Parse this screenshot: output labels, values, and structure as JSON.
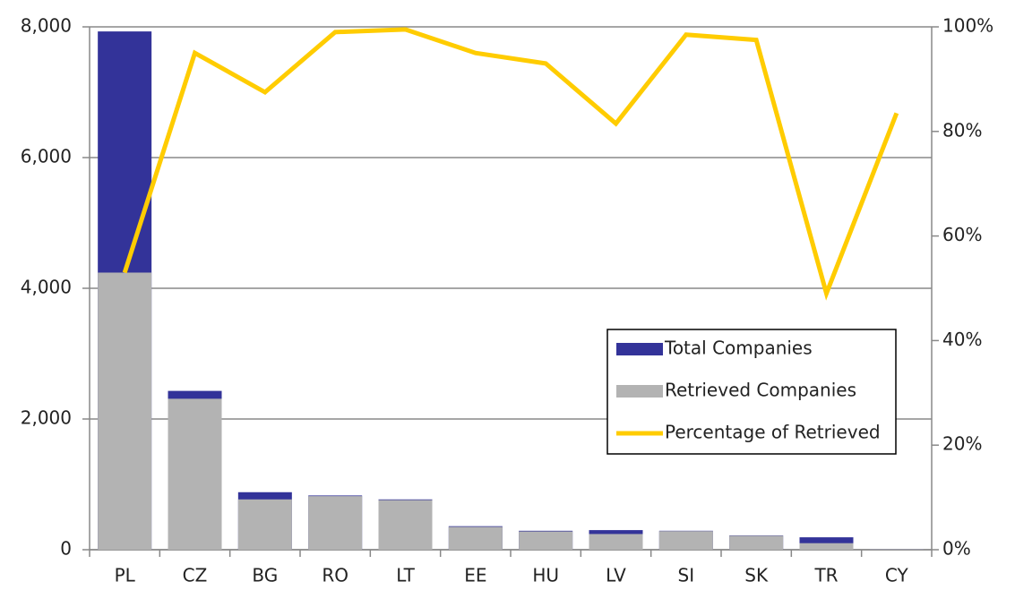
{
  "chart_data": {
    "type": "bar",
    "categories": [
      "PL",
      "CZ",
      "BG",
      "RO",
      "LT",
      "EE",
      "HU",
      "LV",
      "SI",
      "SK",
      "TR",
      "CY"
    ],
    "series": [
      {
        "name": "Total Companies",
        "type": "bar",
        "color": "#333399",
        "values": [
          7930,
          2430,
          880,
          830,
          770,
          360,
          290,
          300,
          290,
          220,
          190,
          6
        ]
      },
      {
        "name": "Retrieved Companies",
        "type": "bar",
        "color": "#b3b3b3",
        "values": [
          4240,
          2310,
          770,
          820,
          760,
          350,
          280,
          240,
          285,
          215,
          100,
          5
        ]
      },
      {
        "name": "Percentage of Retrieved",
        "type": "line",
        "axis": "y2",
        "color": "#ffcc00",
        "values": [
          53,
          95,
          87.5,
          99,
          99.5,
          95,
          93,
          81.5,
          98.5,
          97.5,
          49,
          83.5
        ]
      }
    ],
    "ylim": [
      0,
      8000
    ],
    "yticks": [
      0,
      {
        "value": 2000,
        "label": "2,000"
      },
      {
        "value": 4000,
        "label": "4,000"
      },
      {
        "value": 6000,
        "label": "6,000"
      },
      {
        "value": 8000,
        "label": "8,000"
      }
    ],
    "y2lim": [
      0,
      100
    ],
    "y2ticks": [
      {
        "value": 0,
        "label": "0%"
      },
      {
        "value": 20,
        "label": "20%"
      },
      {
        "value": 40,
        "label": "40%"
      },
      {
        "value": 60,
        "label": "60%"
      },
      {
        "value": 80,
        "label": "80%"
      },
      {
        "value": 100,
        "label": "100%"
      }
    ],
    "grid": true
  }
}
